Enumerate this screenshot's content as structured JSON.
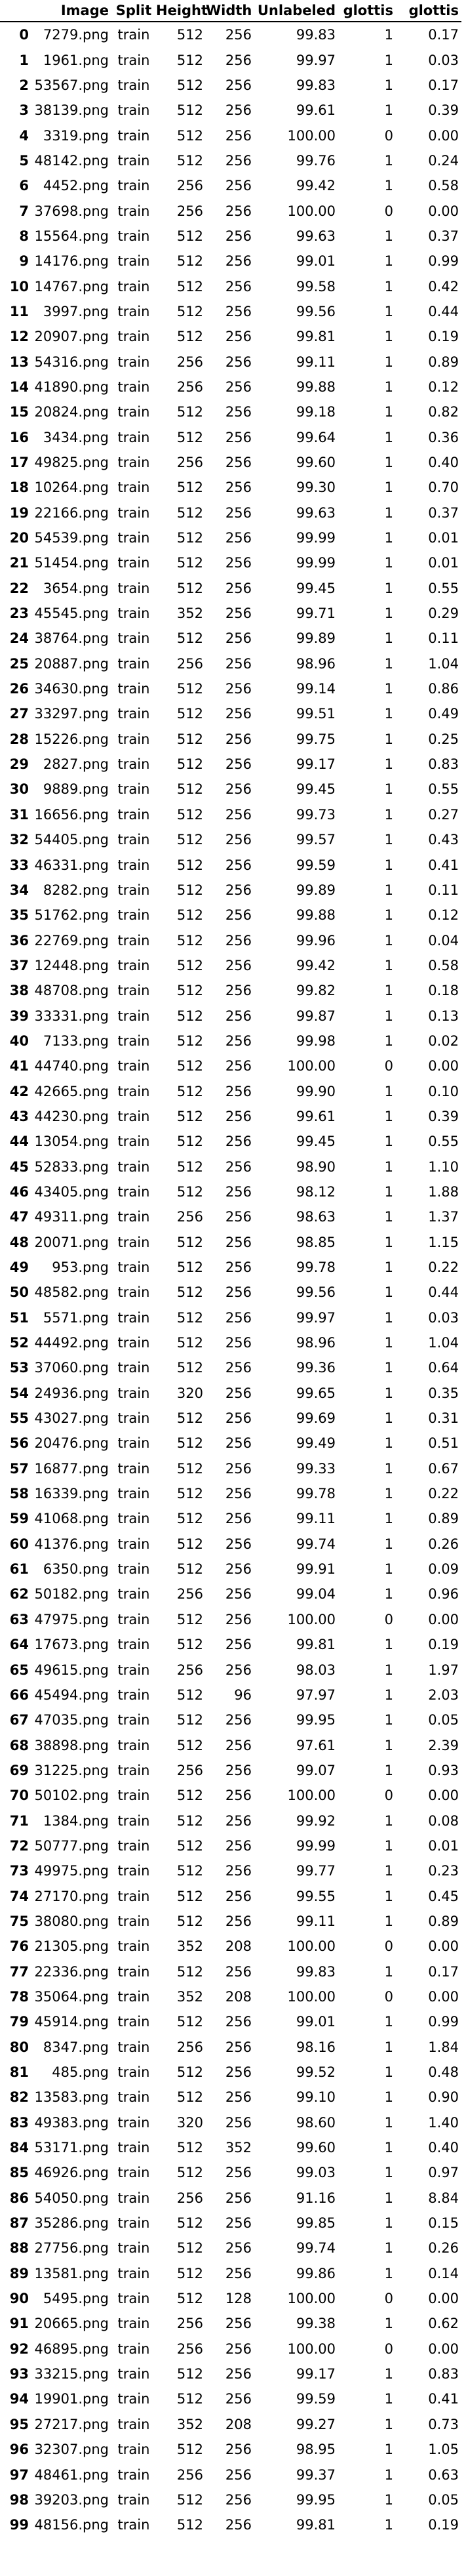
{
  "table": {
    "columns": [
      "",
      "Image",
      "Split",
      "Height",
      "Width",
      "Unlabeled",
      "glottis",
      "glottis"
    ],
    "rows": [
      [
        "0",
        "7279.png",
        "train",
        "512",
        "256",
        "99.83",
        "1",
        "0.17"
      ],
      [
        "1",
        "1961.png",
        "train",
        "512",
        "256",
        "99.97",
        "1",
        "0.03"
      ],
      [
        "2",
        "53567.png",
        "train",
        "512",
        "256",
        "99.83",
        "1",
        "0.17"
      ],
      [
        "3",
        "38139.png",
        "train",
        "512",
        "256",
        "99.61",
        "1",
        "0.39"
      ],
      [
        "4",
        "3319.png",
        "train",
        "512",
        "256",
        "100.00",
        "0",
        "0.00"
      ],
      [
        "5",
        "48142.png",
        "train",
        "512",
        "256",
        "99.76",
        "1",
        "0.24"
      ],
      [
        "6",
        "4452.png",
        "train",
        "256",
        "256",
        "99.42",
        "1",
        "0.58"
      ],
      [
        "7",
        "37698.png",
        "train",
        "256",
        "256",
        "100.00",
        "0",
        "0.00"
      ],
      [
        "8",
        "15564.png",
        "train",
        "512",
        "256",
        "99.63",
        "1",
        "0.37"
      ],
      [
        "9",
        "14176.png",
        "train",
        "512",
        "256",
        "99.01",
        "1",
        "0.99"
      ],
      [
        "10",
        "14767.png",
        "train",
        "512",
        "256",
        "99.58",
        "1",
        "0.42"
      ],
      [
        "11",
        "3997.png",
        "train",
        "512",
        "256",
        "99.56",
        "1",
        "0.44"
      ],
      [
        "12",
        "20907.png",
        "train",
        "512",
        "256",
        "99.81",
        "1",
        "0.19"
      ],
      [
        "13",
        "54316.png",
        "train",
        "256",
        "256",
        "99.11",
        "1",
        "0.89"
      ],
      [
        "14",
        "41890.png",
        "train",
        "256",
        "256",
        "99.88",
        "1",
        "0.12"
      ],
      [
        "15",
        "20824.png",
        "train",
        "512",
        "256",
        "99.18",
        "1",
        "0.82"
      ],
      [
        "16",
        "3434.png",
        "train",
        "512",
        "256",
        "99.64",
        "1",
        "0.36"
      ],
      [
        "17",
        "49825.png",
        "train",
        "256",
        "256",
        "99.60",
        "1",
        "0.40"
      ],
      [
        "18",
        "10264.png",
        "train",
        "512",
        "256",
        "99.30",
        "1",
        "0.70"
      ],
      [
        "19",
        "22166.png",
        "train",
        "512",
        "256",
        "99.63",
        "1",
        "0.37"
      ],
      [
        "20",
        "54539.png",
        "train",
        "512",
        "256",
        "99.99",
        "1",
        "0.01"
      ],
      [
        "21",
        "51454.png",
        "train",
        "512",
        "256",
        "99.99",
        "1",
        "0.01"
      ],
      [
        "22",
        "3654.png",
        "train",
        "512",
        "256",
        "99.45",
        "1",
        "0.55"
      ],
      [
        "23",
        "45545.png",
        "train",
        "352",
        "256",
        "99.71",
        "1",
        "0.29"
      ],
      [
        "24",
        "38764.png",
        "train",
        "512",
        "256",
        "99.89",
        "1",
        "0.11"
      ],
      [
        "25",
        "20887.png",
        "train",
        "256",
        "256",
        "98.96",
        "1",
        "1.04"
      ],
      [
        "26",
        "34630.png",
        "train",
        "512",
        "256",
        "99.14",
        "1",
        "0.86"
      ],
      [
        "27",
        "33297.png",
        "train",
        "512",
        "256",
        "99.51",
        "1",
        "0.49"
      ],
      [
        "28",
        "15226.png",
        "train",
        "512",
        "256",
        "99.75",
        "1",
        "0.25"
      ],
      [
        "29",
        "2827.png",
        "train",
        "512",
        "256",
        "99.17",
        "1",
        "0.83"
      ],
      [
        "30",
        "9889.png",
        "train",
        "512",
        "256",
        "99.45",
        "1",
        "0.55"
      ],
      [
        "31",
        "16656.png",
        "train",
        "512",
        "256",
        "99.73",
        "1",
        "0.27"
      ],
      [
        "32",
        "54405.png",
        "train",
        "512",
        "256",
        "99.57",
        "1",
        "0.43"
      ],
      [
        "33",
        "46331.png",
        "train",
        "512",
        "256",
        "99.59",
        "1",
        "0.41"
      ],
      [
        "34",
        "8282.png",
        "train",
        "512",
        "256",
        "99.89",
        "1",
        "0.11"
      ],
      [
        "35",
        "51762.png",
        "train",
        "512",
        "256",
        "99.88",
        "1",
        "0.12"
      ],
      [
        "36",
        "22769.png",
        "train",
        "512",
        "256",
        "99.96",
        "1",
        "0.04"
      ],
      [
        "37",
        "12448.png",
        "train",
        "512",
        "256",
        "99.42",
        "1",
        "0.58"
      ],
      [
        "38",
        "48708.png",
        "train",
        "512",
        "256",
        "99.82",
        "1",
        "0.18"
      ],
      [
        "39",
        "33331.png",
        "train",
        "512",
        "256",
        "99.87",
        "1",
        "0.13"
      ],
      [
        "40",
        "7133.png",
        "train",
        "512",
        "256",
        "99.98",
        "1",
        "0.02"
      ],
      [
        "41",
        "44740.png",
        "train",
        "512",
        "256",
        "100.00",
        "0",
        "0.00"
      ],
      [
        "42",
        "42665.png",
        "train",
        "512",
        "256",
        "99.90",
        "1",
        "0.10"
      ],
      [
        "43",
        "44230.png",
        "train",
        "512",
        "256",
        "99.61",
        "1",
        "0.39"
      ],
      [
        "44",
        "13054.png",
        "train",
        "512",
        "256",
        "99.45",
        "1",
        "0.55"
      ],
      [
        "45",
        "52833.png",
        "train",
        "512",
        "256",
        "98.90",
        "1",
        "1.10"
      ],
      [
        "46",
        "43405.png",
        "train",
        "512",
        "256",
        "98.12",
        "1",
        "1.88"
      ],
      [
        "47",
        "49311.png",
        "train",
        "256",
        "256",
        "98.63",
        "1",
        "1.37"
      ],
      [
        "48",
        "20071.png",
        "train",
        "512",
        "256",
        "98.85",
        "1",
        "1.15"
      ],
      [
        "49",
        "953.png",
        "train",
        "512",
        "256",
        "99.78",
        "1",
        "0.22"
      ],
      [
        "50",
        "48582.png",
        "train",
        "512",
        "256",
        "99.56",
        "1",
        "0.44"
      ],
      [
        "51",
        "5571.png",
        "train",
        "512",
        "256",
        "99.97",
        "1",
        "0.03"
      ],
      [
        "52",
        "44492.png",
        "train",
        "512",
        "256",
        "98.96",
        "1",
        "1.04"
      ],
      [
        "53",
        "37060.png",
        "train",
        "512",
        "256",
        "99.36",
        "1",
        "0.64"
      ],
      [
        "54",
        "24936.png",
        "train",
        "320",
        "256",
        "99.65",
        "1",
        "0.35"
      ],
      [
        "55",
        "43027.png",
        "train",
        "512",
        "256",
        "99.69",
        "1",
        "0.31"
      ],
      [
        "56",
        "20476.png",
        "train",
        "512",
        "256",
        "99.49",
        "1",
        "0.51"
      ],
      [
        "57",
        "16877.png",
        "train",
        "512",
        "256",
        "99.33",
        "1",
        "0.67"
      ],
      [
        "58",
        "16339.png",
        "train",
        "512",
        "256",
        "99.78",
        "1",
        "0.22"
      ],
      [
        "59",
        "41068.png",
        "train",
        "512",
        "256",
        "99.11",
        "1",
        "0.89"
      ],
      [
        "60",
        "41376.png",
        "train",
        "512",
        "256",
        "99.74",
        "1",
        "0.26"
      ],
      [
        "61",
        "6350.png",
        "train",
        "512",
        "256",
        "99.91",
        "1",
        "0.09"
      ],
      [
        "62",
        "50182.png",
        "train",
        "256",
        "256",
        "99.04",
        "1",
        "0.96"
      ],
      [
        "63",
        "47975.png",
        "train",
        "512",
        "256",
        "100.00",
        "0",
        "0.00"
      ],
      [
        "64",
        "17673.png",
        "train",
        "512",
        "256",
        "99.81",
        "1",
        "0.19"
      ],
      [
        "65",
        "49615.png",
        "train",
        "256",
        "256",
        "98.03",
        "1",
        "1.97"
      ],
      [
        "66",
        "45494.png",
        "train",
        "512",
        "96",
        "97.97",
        "1",
        "2.03"
      ],
      [
        "67",
        "47035.png",
        "train",
        "512",
        "256",
        "99.95",
        "1",
        "0.05"
      ],
      [
        "68",
        "38898.png",
        "train",
        "512",
        "256",
        "97.61",
        "1",
        "2.39"
      ],
      [
        "69",
        "31225.png",
        "train",
        "256",
        "256",
        "99.07",
        "1",
        "0.93"
      ],
      [
        "70",
        "50102.png",
        "train",
        "512",
        "256",
        "100.00",
        "0",
        "0.00"
      ],
      [
        "71",
        "1384.png",
        "train",
        "512",
        "256",
        "99.92",
        "1",
        "0.08"
      ],
      [
        "72",
        "50777.png",
        "train",
        "512",
        "256",
        "99.99",
        "1",
        "0.01"
      ],
      [
        "73",
        "49975.png",
        "train",
        "512",
        "256",
        "99.77",
        "1",
        "0.23"
      ],
      [
        "74",
        "27170.png",
        "train",
        "512",
        "256",
        "99.55",
        "1",
        "0.45"
      ],
      [
        "75",
        "38080.png",
        "train",
        "512",
        "256",
        "99.11",
        "1",
        "0.89"
      ],
      [
        "76",
        "21305.png",
        "train",
        "352",
        "208",
        "100.00",
        "0",
        "0.00"
      ],
      [
        "77",
        "22336.png",
        "train",
        "512",
        "256",
        "99.83",
        "1",
        "0.17"
      ],
      [
        "78",
        "35064.png",
        "train",
        "352",
        "208",
        "100.00",
        "0",
        "0.00"
      ],
      [
        "79",
        "45914.png",
        "train",
        "512",
        "256",
        "99.01",
        "1",
        "0.99"
      ],
      [
        "80",
        "8347.png",
        "train",
        "256",
        "256",
        "98.16",
        "1",
        "1.84"
      ],
      [
        "81",
        "485.png",
        "train",
        "512",
        "256",
        "99.52",
        "1",
        "0.48"
      ],
      [
        "82",
        "13583.png",
        "train",
        "512",
        "256",
        "99.10",
        "1",
        "0.90"
      ],
      [
        "83",
        "49383.png",
        "train",
        "320",
        "256",
        "98.60",
        "1",
        "1.40"
      ],
      [
        "84",
        "53171.png",
        "train",
        "512",
        "352",
        "99.60",
        "1",
        "0.40"
      ],
      [
        "85",
        "46926.png",
        "train",
        "512",
        "256",
        "99.03",
        "1",
        "0.97"
      ],
      [
        "86",
        "54050.png",
        "train",
        "256",
        "256",
        "91.16",
        "1",
        "8.84"
      ],
      [
        "87",
        "35286.png",
        "train",
        "512",
        "256",
        "99.85",
        "1",
        "0.15"
      ],
      [
        "88",
        "27756.png",
        "train",
        "512",
        "256",
        "99.74",
        "1",
        "0.26"
      ],
      [
        "89",
        "13581.png",
        "train",
        "512",
        "256",
        "99.86",
        "1",
        "0.14"
      ],
      [
        "90",
        "5495.png",
        "train",
        "512",
        "128",
        "100.00",
        "0",
        "0.00"
      ],
      [
        "91",
        "20665.png",
        "train",
        "256",
        "256",
        "99.38",
        "1",
        "0.62"
      ],
      [
        "92",
        "46895.png",
        "train",
        "256",
        "256",
        "100.00",
        "0",
        "0.00"
      ],
      [
        "93",
        "33215.png",
        "train",
        "512",
        "256",
        "99.17",
        "1",
        "0.83"
      ],
      [
        "94",
        "19901.png",
        "train",
        "512",
        "256",
        "99.59",
        "1",
        "0.41"
      ],
      [
        "95",
        "27217.png",
        "train",
        "352",
        "208",
        "99.27",
        "1",
        "0.73"
      ],
      [
        "96",
        "32307.png",
        "train",
        "512",
        "256",
        "98.95",
        "1",
        "1.05"
      ],
      [
        "97",
        "48461.png",
        "train",
        "256",
        "256",
        "99.37",
        "1",
        "0.63"
      ],
      [
        "98",
        "39203.png",
        "train",
        "512",
        "256",
        "99.95",
        "1",
        "0.05"
      ],
      [
        "99",
        "48156.png",
        "train",
        "512",
        "256",
        "99.81",
        "1",
        "0.19"
      ]
    ]
  }
}
